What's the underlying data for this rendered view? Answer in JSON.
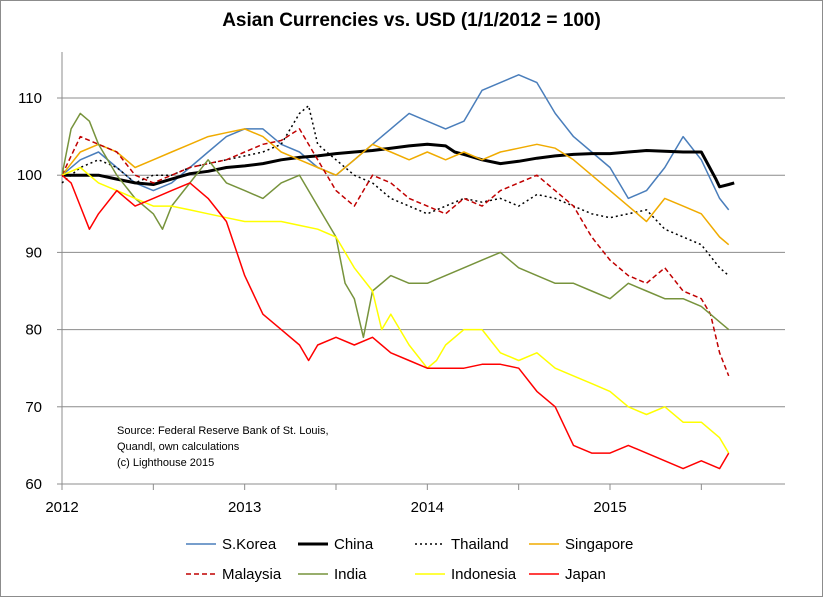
{
  "chart_data": {
    "type": "line",
    "title": "Asian Currencies vs. USD (1/1/2012 = 100)",
    "xlabel": "",
    "ylabel": "",
    "x_ticks": [
      "2012",
      "2013",
      "2014",
      "2015"
    ],
    "y_ticks": [
      60,
      70,
      80,
      90,
      100,
      110
    ],
    "xlim": [
      2012.0,
      2015.95
    ],
    "ylim": [
      60,
      116
    ],
    "grid": "horizontal",
    "legend_position": "bottom",
    "source_lines": [
      "Source: Federal Reserve Bank of St. Louis,",
      "Quandl, own calculations",
      "(c) Lighthouse 2015"
    ],
    "series": [
      {
        "name": "S.Korea",
        "color": "#4a7ebb",
        "dash": "solid",
        "width": 1.5,
        "x": [
          2012.0,
          2012.1,
          2012.2,
          2012.3,
          2012.4,
          2012.5,
          2012.6,
          2012.7,
          2012.8,
          2012.9,
          2013.0,
          2013.1,
          2013.2,
          2013.3,
          2013.4,
          2013.5,
          2013.6,
          2013.7,
          2013.8,
          2013.9,
          2014.0,
          2014.1,
          2014.2,
          2014.3,
          2014.4,
          2014.5,
          2014.6,
          2014.7,
          2014.8,
          2014.9,
          2015.0,
          2015.1,
          2015.2,
          2015.3,
          2015.4,
          2015.5,
          2015.6,
          2015.65
        ],
        "y": [
          100,
          102,
          103,
          101,
          99,
          98,
          99,
          101,
          103,
          105,
          106,
          106,
          104,
          103,
          101,
          100,
          102,
          104,
          106,
          108,
          107,
          106,
          107,
          111,
          112,
          113,
          112,
          108,
          105,
          103,
          101,
          97,
          98,
          101,
          105,
          102,
          97,
          95.5
        ]
      },
      {
        "name": "China",
        "color": "#000000",
        "dash": "solid",
        "width": 3,
        "x": [
          2012.0,
          2012.1,
          2012.2,
          2012.3,
          2012.4,
          2012.5,
          2012.6,
          2012.7,
          2012.8,
          2012.9,
          2013.0,
          2013.1,
          2013.2,
          2013.3,
          2013.4,
          2013.5,
          2013.6,
          2013.7,
          2013.8,
          2013.9,
          2014.0,
          2014.1,
          2014.15,
          2014.2,
          2014.3,
          2014.4,
          2014.5,
          2014.6,
          2014.7,
          2014.8,
          2014.9,
          2015.0,
          2015.1,
          2015.2,
          2015.3,
          2015.4,
          2015.5,
          2015.58,
          2015.6,
          2015.65,
          2015.68
        ],
        "y": [
          100,
          100,
          100,
          99.5,
          99,
          98.8,
          99.5,
          100.2,
          100.5,
          101,
          101.2,
          101.5,
          102,
          102.3,
          102.5,
          102.8,
          103,
          103.2,
          103.5,
          103.8,
          104,
          103.8,
          103,
          102.7,
          102,
          101.5,
          101.8,
          102.2,
          102.5,
          102.7,
          102.8,
          102.8,
          103,
          103.2,
          103.1,
          103,
          103,
          99.5,
          98.5,
          98.8,
          99
        ]
      },
      {
        "name": "Thailand",
        "color": "#000000",
        "dash": "2,3",
        "width": 1.5,
        "x": [
          2012.0,
          2012.1,
          2012.2,
          2012.3,
          2012.4,
          2012.5,
          2012.6,
          2012.7,
          2012.8,
          2012.9,
          2013.0,
          2013.1,
          2013.2,
          2013.3,
          2013.35,
          2013.4,
          2013.5,
          2013.6,
          2013.7,
          2013.8,
          2013.9,
          2014.0,
          2014.1,
          2014.2,
          2014.3,
          2014.4,
          2014.5,
          2014.6,
          2014.7,
          2014.8,
          2014.9,
          2015.0,
          2015.1,
          2015.2,
          2015.3,
          2015.4,
          2015.5,
          2015.6,
          2015.65
        ],
        "y": [
          99,
          101,
          102,
          101,
          99,
          100,
          100,
          101,
          101.5,
          102,
          102.5,
          103,
          104,
          108,
          109,
          104,
          102,
          100,
          99,
          97,
          96,
          95,
          96,
          97,
          96.5,
          97,
          96,
          97.5,
          97,
          96,
          95,
          94.5,
          95,
          95.5,
          93,
          92,
          91,
          88,
          87
        ]
      },
      {
        "name": "Singapore",
        "color": "#f0ab00",
        "dash": "solid",
        "width": 1.5,
        "x": [
          2012.0,
          2012.1,
          2012.2,
          2012.3,
          2012.4,
          2012.5,
          2012.6,
          2012.7,
          2012.8,
          2012.9,
          2013.0,
          2013.1,
          2013.2,
          2013.3,
          2013.4,
          2013.5,
          2013.6,
          2013.7,
          2013.8,
          2013.9,
          2014.0,
          2014.1,
          2014.2,
          2014.3,
          2014.4,
          2014.5,
          2014.6,
          2014.7,
          2014.8,
          2014.9,
          2015.0,
          2015.1,
          2015.2,
          2015.3,
          2015.4,
          2015.5,
          2015.6,
          2015.65
        ],
        "y": [
          100,
          103,
          104,
          103,
          101,
          102,
          103,
          104,
          105,
          105.5,
          106,
          105,
          103,
          102,
          101,
          100,
          102,
          104,
          103,
          102,
          103,
          102,
          103,
          102,
          103,
          103.5,
          104,
          103.5,
          102,
          100,
          98,
          96,
          94,
          97,
          96,
          95,
          92,
          91
        ]
      },
      {
        "name": "Malaysia",
        "color": "#c00000",
        "dash": "5,3",
        "width": 1.5,
        "x": [
          2012.0,
          2012.1,
          2012.2,
          2012.3,
          2012.4,
          2012.5,
          2012.6,
          2012.7,
          2012.8,
          2012.9,
          2013.0,
          2013.1,
          2013.2,
          2013.3,
          2013.4,
          2013.5,
          2013.6,
          2013.7,
          2013.8,
          2013.9,
          2014.0,
          2014.1,
          2014.2,
          2014.3,
          2014.4,
          2014.5,
          2014.6,
          2014.7,
          2014.8,
          2014.9,
          2015.0,
          2015.1,
          2015.2,
          2015.3,
          2015.4,
          2015.5,
          2015.55,
          2015.6,
          2015.65
        ],
        "y": [
          100,
          105,
          104,
          103,
          100,
          99,
          100,
          101,
          101.5,
          102,
          103,
          104,
          104.5,
          106,
          102,
          98,
          96,
          100,
          99,
          97,
          96,
          95,
          97,
          96,
          98,
          99,
          100,
          98,
          96,
          92,
          89,
          87,
          86,
          88,
          85,
          84,
          82,
          77,
          74
        ]
      },
      {
        "name": "India",
        "color": "#77933c",
        "dash": "solid",
        "width": 1.5,
        "x": [
          2012.0,
          2012.05,
          2012.1,
          2012.15,
          2012.2,
          2012.3,
          2012.4,
          2012.5,
          2012.55,
          2012.6,
          2012.7,
          2012.8,
          2012.9,
          2013.0,
          2013.1,
          2013.2,
          2013.3,
          2013.4,
          2013.5,
          2013.55,
          2013.6,
          2013.65,
          2013.7,
          2013.8,
          2013.9,
          2014.0,
          2014.1,
          2014.2,
          2014.3,
          2014.4,
          2014.5,
          2014.6,
          2014.7,
          2014.8,
          2014.9,
          2015.0,
          2015.1,
          2015.2,
          2015.3,
          2015.4,
          2015.5,
          2015.6,
          2015.65
        ],
        "y": [
          100,
          106,
          108,
          107,
          104,
          100,
          97,
          95,
          93,
          96,
          99,
          102,
          99,
          98,
          97,
          99,
          100,
          96,
          92,
          86,
          84,
          79,
          85,
          87,
          86,
          86,
          87,
          88,
          89,
          90,
          88,
          87,
          86,
          86,
          85,
          84,
          86,
          85,
          84,
          84,
          83,
          81,
          80
        ]
      },
      {
        "name": "Indonesia",
        "color": "#ffff00",
        "dash": "solid",
        "width": 1.5,
        "x": [
          2012.0,
          2012.1,
          2012.2,
          2012.3,
          2012.4,
          2012.5,
          2012.6,
          2012.7,
          2012.8,
          2012.9,
          2013.0,
          2013.1,
          2013.2,
          2013.3,
          2013.4,
          2013.5,
          2013.6,
          2013.7,
          2013.75,
          2013.8,
          2013.9,
          2014.0,
          2014.05,
          2014.1,
          2014.2,
          2014.3,
          2014.4,
          2014.5,
          2014.6,
          2014.7,
          2014.8,
          2014.9,
          2015.0,
          2015.1,
          2015.2,
          2015.3,
          2015.4,
          2015.5,
          2015.6,
          2015.65
        ],
        "y": [
          100,
          101,
          99,
          98,
          97,
          96,
          96,
          95.5,
          95,
          94.5,
          94,
          94,
          94,
          93.5,
          93,
          92,
          88,
          85,
          80,
          82,
          78,
          75,
          76,
          78,
          80,
          80,
          77,
          76,
          77,
          75,
          74,
          73,
          72,
          70,
          69,
          70,
          68,
          68,
          66,
          64
        ]
      },
      {
        "name": "Japan",
        "color": "#ff0000",
        "dash": "solid",
        "width": 1.5,
        "x": [
          2012.0,
          2012.05,
          2012.1,
          2012.15,
          2012.2,
          2012.3,
          2012.4,
          2012.5,
          2012.6,
          2012.7,
          2012.8,
          2012.9,
          2013.0,
          2013.1,
          2013.2,
          2013.3,
          2013.35,
          2013.4,
          2013.5,
          2013.6,
          2013.7,
          2013.8,
          2013.9,
          2014.0,
          2014.1,
          2014.2,
          2014.3,
          2014.4,
          2014.5,
          2014.6,
          2014.7,
          2014.8,
          2014.9,
          2015.0,
          2015.1,
          2015.2,
          2015.3,
          2015.4,
          2015.5,
          2015.6,
          2015.65
        ],
        "y": [
          100,
          99,
          96,
          93,
          95,
          98,
          96,
          97,
          98,
          99,
          97,
          94,
          87,
          82,
          80,
          78,
          76,
          78,
          79,
          78,
          79,
          77,
          76,
          75,
          75,
          75,
          75.5,
          75.5,
          75,
          72,
          70,
          65,
          64,
          64,
          65,
          64,
          63,
          62,
          63,
          62,
          64
        ]
      }
    ]
  }
}
